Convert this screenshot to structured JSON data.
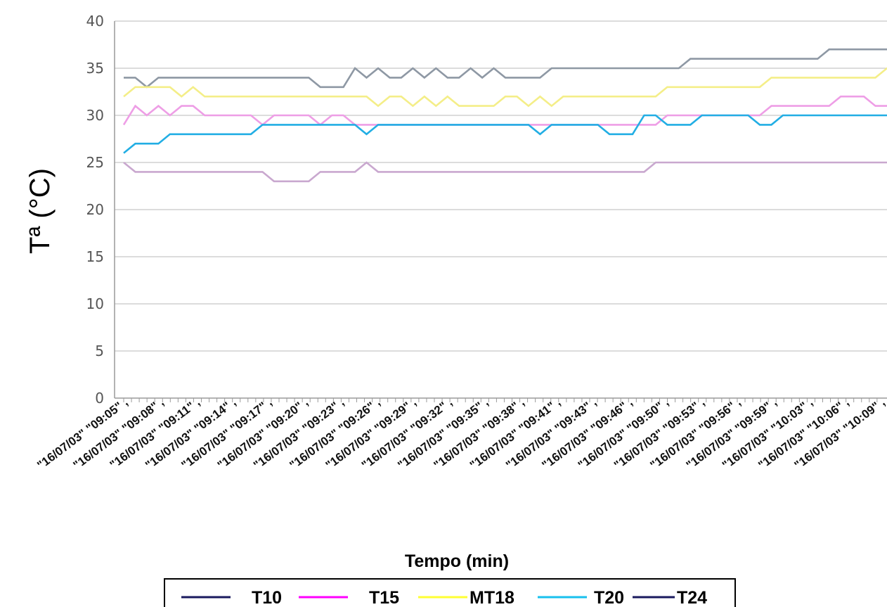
{
  "chart_data": {
    "type": "line",
    "title": "",
    "xlabel": "Tempo (min)",
    "ylabel": "Tª (°C)",
    "ylim": [
      0,
      40
    ],
    "yticks": [
      0,
      5,
      10,
      15,
      20,
      25,
      30,
      35,
      40
    ],
    "grid": true,
    "legend_position": "bottom",
    "x_tick_labels": [
      "\"16/07/03\" \"09:05\" ,",
      "\"16/07/03\" \"09:08\" ,",
      "\"16/07/03\" \"09:11\" ,",
      "\"16/07/03\" \"09:14\" ,",
      "\"16/07/03\" \"09:17\" ,",
      "\"16/07/03\" \"09:20\" ,",
      "\"16/07/03\" \"09:23\" ,",
      "\"16/07/03\" \"09:26\" ,",
      "\"16/07/03\" \"09:29\" ,",
      "\"16/07/03\" \"09:32\" ,",
      "\"16/07/03\" \"09:35\" ,",
      "\"16/07/03\" \"09:38\" ,",
      "\"16/07/03\" \"09:41\" ,",
      "\"16/07/03\" \"09:43\" ,",
      "\"16/07/03\" \"09:46\" ,",
      "\"16/07/03\" \"09:50\" ,",
      "\"16/07/03\" \"09:53\" ,",
      "\"16/07/03\" \"09:56\" ,",
      "\"16/07/03\" \"09:59\" ,",
      "\"16/07/03\" \"10:03\" ,",
      "\"16/07/03\" \"10:06\" ,",
      "\"16/07/03\" \"10:09\" ,"
    ],
    "series": [
      {
        "name": "T10",
        "color": "#1a1a5e",
        "plot_color": "#8e98a4",
        "values": [
          34,
          34,
          33,
          34,
          34,
          34,
          34,
          34,
          34,
          34,
          34,
          34,
          34,
          34,
          34,
          34,
          34,
          33,
          33,
          33,
          35,
          34,
          35,
          34,
          34,
          35,
          34,
          35,
          34,
          34,
          35,
          34,
          35,
          34,
          34,
          34,
          34,
          35,
          35,
          35,
          35,
          35,
          35,
          35,
          35,
          35,
          35,
          35,
          35,
          36,
          36,
          36,
          36,
          36,
          36,
          36,
          36,
          36,
          36,
          36,
          36,
          37,
          37,
          37,
          37,
          37,
          37
        ]
      },
      {
        "name": "T15",
        "color": "#ff00ff",
        "plot_color": "#ee9ee6",
        "values": [
          29,
          31,
          30,
          31,
          30,
          31,
          31,
          30,
          30,
          30,
          30,
          30,
          29,
          30,
          30,
          30,
          30,
          29,
          30,
          30,
          29,
          29,
          29,
          29,
          29,
          29,
          29,
          29,
          29,
          29,
          29,
          29,
          29,
          29,
          29,
          29,
          29,
          29,
          29,
          29,
          29,
          29,
          29,
          29,
          29,
          29,
          29,
          30,
          30,
          30,
          30,
          30,
          30,
          30,
          30,
          30,
          31,
          31,
          31,
          31,
          31,
          31,
          32,
          32,
          32,
          31,
          31,
          32
        ]
      },
      {
        "name": "MT18",
        "color": "#ffff33",
        "plot_color": "#f4ee88",
        "values": [
          32,
          33,
          33,
          33,
          33,
          32,
          33,
          32,
          32,
          32,
          32,
          32,
          32,
          32,
          32,
          32,
          32,
          32,
          32,
          32,
          32,
          32,
          31,
          32,
          32,
          31,
          32,
          31,
          32,
          31,
          31,
          31,
          31,
          32,
          32,
          31,
          32,
          31,
          32,
          32,
          32,
          32,
          32,
          32,
          32,
          32,
          32,
          33,
          33,
          33,
          33,
          33,
          33,
          33,
          33,
          33,
          34,
          34,
          34,
          34,
          34,
          34,
          34,
          34,
          34,
          34,
          35,
          35
        ]
      },
      {
        "name": "T20",
        "color": "#18c0ee",
        "plot_color": "#22aee4",
        "values": [
          26,
          27,
          27,
          27,
          28,
          28,
          28,
          28,
          28,
          28,
          28,
          28,
          29,
          29,
          29,
          29,
          29,
          29,
          29,
          29,
          29,
          28,
          29,
          29,
          29,
          29,
          29,
          29,
          29,
          29,
          29,
          29,
          29,
          29,
          29,
          29,
          28,
          29,
          29,
          29,
          29,
          29,
          28,
          28,
          28,
          30,
          30,
          29,
          29,
          29,
          30,
          30,
          30,
          30,
          30,
          29,
          29,
          30,
          30,
          30,
          30,
          30,
          30,
          30,
          30,
          30,
          30,
          30
        ]
      },
      {
        "name": "T24",
        "color": "#1a1a5e",
        "plot_color": "#c9a8cf",
        "values": [
          25,
          24,
          24,
          24,
          24,
          24,
          24,
          24,
          24,
          24,
          24,
          24,
          24,
          23,
          23,
          23,
          23,
          24,
          24,
          24,
          24,
          25,
          24,
          24,
          24,
          24,
          24,
          24,
          24,
          24,
          24,
          24,
          24,
          24,
          24,
          24,
          24,
          24,
          24,
          24,
          24,
          24,
          24,
          24,
          24,
          24,
          25,
          25,
          25,
          25,
          25,
          25,
          25,
          25,
          25,
          25,
          25,
          25,
          25,
          25,
          25,
          25,
          25,
          25,
          25,
          25,
          25,
          25
        ]
      }
    ]
  }
}
